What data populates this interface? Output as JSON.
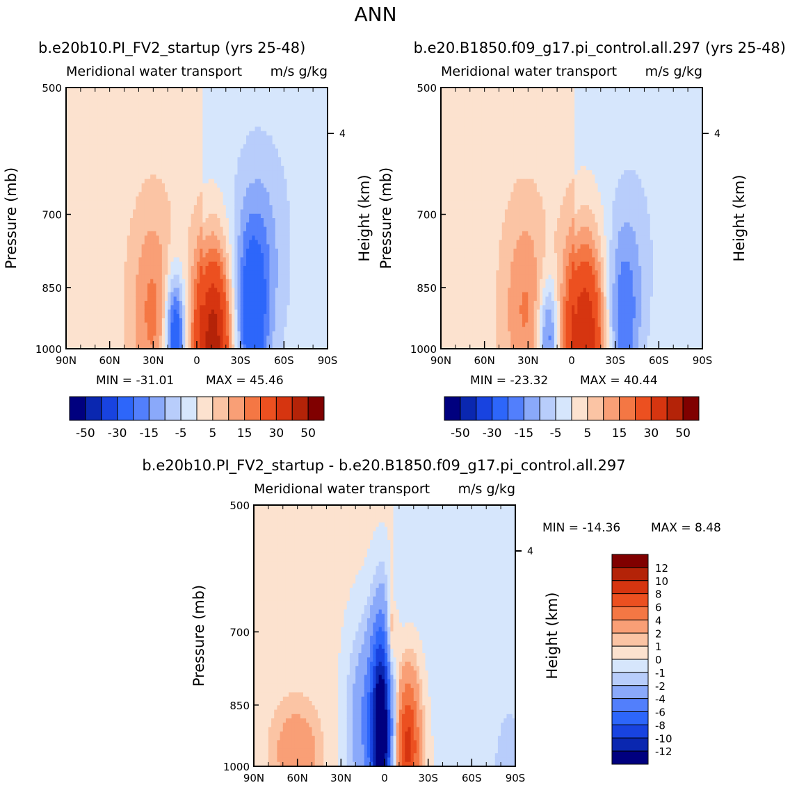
{
  "figure_title": "ANN",
  "chart_data": [
    {
      "type": "heatmap",
      "title": "b.e20b10.PI_FV2_startup (yrs 25-48)",
      "subtitle": "Meridional water transport",
      "units": "m/s g/kg",
      "xlabel": "",
      "ylabel": "Pressure (mb)",
      "y2label": "Height (km)",
      "x_ticks": [
        "90N",
        "60N",
        "30N",
        "0",
        "30S",
        "60S",
        "90S"
      ],
      "y_ticks": [
        500,
        700,
        850,
        1000
      ],
      "y2_ticks": [
        4
      ],
      "ylim": [
        1000,
        500
      ],
      "xlim": [
        "90N",
        "90S"
      ],
      "min": -31.01,
      "max": 45.46,
      "min_label": "MIN = -31.01",
      "max_label": "MAX = 45.46",
      "colorbar": {
        "levels": [
          -50,
          -40,
          -30,
          -20,
          -15,
          -10,
          -5,
          0,
          5,
          10,
          15,
          20,
          30,
          40,
          50
        ],
        "tick_labels": [
          "-50",
          "-30",
          "-15",
          "-5",
          "5",
          "15",
          "30",
          "50"
        ],
        "orientation": "horizontal"
      }
    },
    {
      "type": "heatmap",
      "title": "b.e20.B1850.f09_g17.pi_control.all.297 (yrs 25-48)",
      "subtitle": "Meridional water transport",
      "units": "m/s g/kg",
      "xlabel": "",
      "ylabel": "Pressure (mb)",
      "y2label": "Height (km)",
      "x_ticks": [
        "90N",
        "60N",
        "30N",
        "0",
        "30S",
        "60S",
        "90S"
      ],
      "y_ticks": [
        500,
        700,
        850,
        1000
      ],
      "y2_ticks": [
        4
      ],
      "ylim": [
        1000,
        500
      ],
      "xlim": [
        "90N",
        "90S"
      ],
      "min": -23.32,
      "max": 40.44,
      "min_label": "MIN = -23.32",
      "max_label": "MAX = 40.44",
      "colorbar": {
        "levels": [
          -50,
          -40,
          -30,
          -20,
          -15,
          -10,
          -5,
          0,
          5,
          10,
          15,
          20,
          30,
          40,
          50
        ],
        "tick_labels": [
          "-50",
          "-30",
          "-15",
          "-5",
          "5",
          "15",
          "30",
          "50"
        ],
        "orientation": "horizontal"
      }
    },
    {
      "type": "heatmap",
      "title": "b.e20b10.PI_FV2_startup - b.e20.B1850.f09_g17.pi_control.all.297",
      "subtitle": "Meridional water transport",
      "units": "m/s g/kg",
      "xlabel": "",
      "ylabel": "Pressure (mb)",
      "y2label": "Height (km)",
      "x_ticks": [
        "90N",
        "60N",
        "30N",
        "0",
        "30S",
        "60S",
        "90S"
      ],
      "y_ticks": [
        500,
        700,
        850,
        1000
      ],
      "y2_ticks": [
        4
      ],
      "ylim": [
        1000,
        500
      ],
      "xlim": [
        "90N",
        "90S"
      ],
      "min": -14.36,
      "max": 8.48,
      "min_label": "MIN = -14.36",
      "max_label": "MAX = 8.48",
      "colorbar": {
        "levels": [
          -12,
          -10,
          -8,
          -6,
          -4,
          -2,
          -1,
          0,
          1,
          2,
          4,
          6,
          8,
          10,
          12
        ],
        "tick_labels": [
          "-12",
          "-10",
          "-8",
          "-6",
          "-4",
          "-2",
          "-1",
          "0",
          "1",
          "2",
          "4",
          "6",
          "8",
          "10",
          "12"
        ],
        "orientation": "vertical"
      }
    }
  ],
  "colors": [
    "#00007f",
    "#0a27b0",
    "#1843e0",
    "#2d66fa",
    "#527ffc",
    "#8aa9fa",
    "#b8cdfb",
    "#d6e6fc",
    "#fce2cf",
    "#fbc4a4",
    "#f99f76",
    "#f47744",
    "#ec5020",
    "#d63510",
    "#b42308",
    "#800000"
  ]
}
